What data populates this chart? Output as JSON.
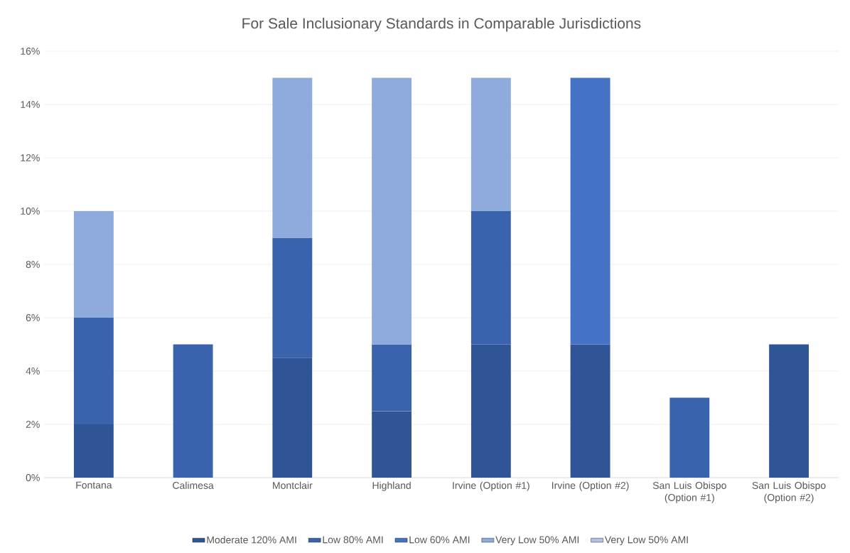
{
  "chart_data": {
    "type": "bar",
    "stacked": true,
    "title": "For Sale Inclusionary Standards in Comparable Jurisdictions",
    "categories": [
      "Fontana",
      "Calimesa",
      "Montclair",
      "Highland",
      "Irvine (Option #1)",
      "Irvine (Option #2)",
      "San Luis Obispo (Option #1)",
      "San Luis Obispo (Option #2)"
    ],
    "series": [
      {
        "name": "Moderate 120% AMI",
        "color": "#2f5597",
        "values": [
          2,
          null,
          4.5,
          2.5,
          5,
          5,
          null,
          5
        ]
      },
      {
        "name": "Low 80% AMI",
        "color": "#3a63ad",
        "values": [
          4,
          5,
          4.5,
          2.5,
          5,
          null,
          3,
          null
        ]
      },
      {
        "name": "Low 60% AMI",
        "color": "#4472c4",
        "values": [
          null,
          null,
          null,
          null,
          null,
          10,
          null,
          null
        ]
      },
      {
        "name": "Very Low 50% AMI",
        "color": "#8faadc",
        "values": [
          4,
          null,
          6,
          10,
          5,
          null,
          null,
          null
        ]
      },
      {
        "name": "Very Low 50% AMI",
        "color": "#b4c1e6",
        "values": [
          null,
          null,
          null,
          null,
          null,
          null,
          null,
          null
        ]
      }
    ],
    "ylim": [
      0,
      16
    ],
    "yticks": [
      {
        "value": 0,
        "label": "0%"
      },
      {
        "value": 2,
        "label": "2%"
      },
      {
        "value": 4,
        "label": "4%"
      },
      {
        "value": 6,
        "label": "6%"
      },
      {
        "value": 8,
        "label": "8%"
      },
      {
        "value": 10,
        "label": "10%"
      },
      {
        "value": 12,
        "label": "12%"
      },
      {
        "value": 14,
        "label": "14%"
      },
      {
        "value": 16,
        "label": "16%"
      }
    ],
    "grid": "y",
    "legend": "bottom"
  }
}
